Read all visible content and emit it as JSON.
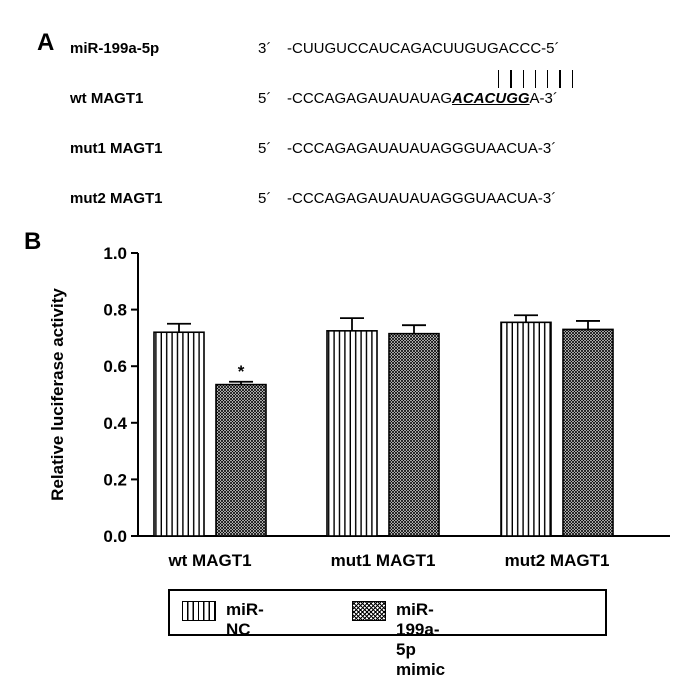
{
  "panel_a": {
    "letter": "A",
    "rows": [
      {
        "name": "miR-199a-5p",
        "prime": "3´",
        "seq_pre": "-CUUGUCCAUCAGACUUGUGACCC-5´",
        "motif": "",
        "seq_post": ""
      },
      {
        "name": "wt MAGT1",
        "prime": "5´",
        "seq_pre": "-CCCAGAGAUAUAUAG",
        "motif": "ACACUGG",
        "seq_post": "A-3´"
      },
      {
        "name": "mut1 MAGT1",
        "prime": "5´",
        "seq_pre": "-CCCAGAGAUAUAUAGGGUAACUA-3´",
        "motif": "",
        "seq_post": ""
      },
      {
        "name": "mut2 MAGT1",
        "prime": "5´",
        "seq_pre": "-CCCAGAGAUAUAUAGGGUAACUA-3´",
        "motif": "",
        "seq_post": ""
      }
    ]
  },
  "panel_b": {
    "letter": "B"
  },
  "chart_data": {
    "type": "bar",
    "categories": [
      "wt MAGT1",
      "mut1 MAGT1",
      "mut2 MAGT1"
    ],
    "series": [
      {
        "name": "miR-NC",
        "values": [
          0.72,
          0.725,
          0.755
        ],
        "errors": [
          0.03,
          0.045,
          0.025
        ],
        "pattern": "vertical-stripes"
      },
      {
        "name": "miR-199a-5p mimic",
        "values": [
          0.535,
          0.715,
          0.73
        ],
        "errors": [
          0.01,
          0.03,
          0.03
        ],
        "pattern": "crosshatch"
      }
    ],
    "annotations": [
      {
        "category": "wt MAGT1",
        "series": "miR-199a-5p mimic",
        "text": "*"
      }
    ],
    "ylabel": "Relative luciferase activity",
    "ylim": [
      0,
      1.0
    ],
    "yticks": [
      "0.0",
      "0.2",
      "0.4",
      "0.6",
      "0.8",
      "1.0"
    ],
    "grid": false,
    "legend": "bottom"
  }
}
